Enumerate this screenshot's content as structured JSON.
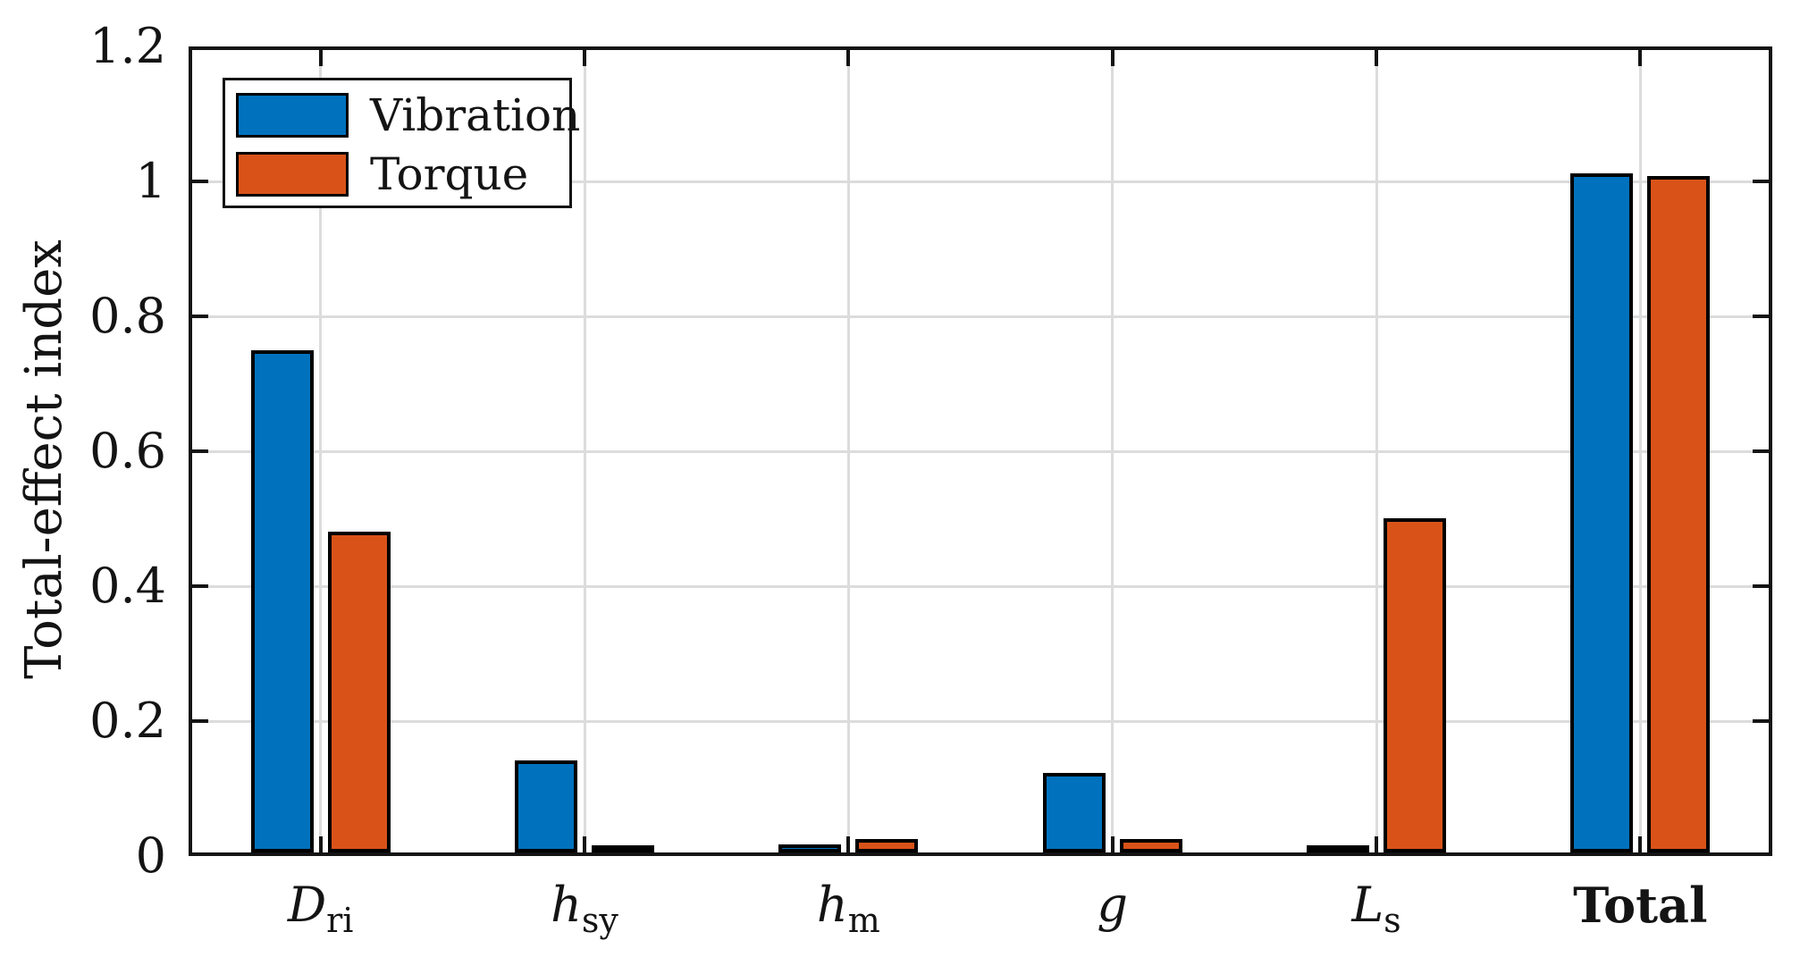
{
  "chart_data": {
    "type": "bar",
    "title": "",
    "xlabel": "",
    "ylabel": "Total-effect index",
    "ylim": [
      0,
      1.2
    ],
    "yticks": [
      0,
      0.2,
      0.4,
      0.6,
      0.8,
      1,
      1.2
    ],
    "ytick_labels": [
      "0",
      "0.2",
      "0.4",
      "0.6",
      "0.8",
      "1",
      "1.2"
    ],
    "grid": true,
    "legend_position": "top-left",
    "categories": [
      "D_ri",
      "h_sy",
      "h_m",
      "g",
      "L_s",
      "Total"
    ],
    "categories_rich": [
      {
        "base": "D",
        "style": "italic",
        "sub": "ri"
      },
      {
        "base": "h",
        "style": "italic",
        "sub": "sy"
      },
      {
        "base": "h",
        "style": "italic",
        "sub": "m"
      },
      {
        "base": "g",
        "style": "italic",
        "sub": ""
      },
      {
        "base": "L",
        "style": "italic",
        "sub": "s"
      },
      {
        "base": "Total",
        "style": "bold",
        "sub": ""
      }
    ],
    "series": [
      {
        "name": "Vibration",
        "color": "#0072BD",
        "values": [
          0.74,
          0.133,
          0.008,
          0.114,
          0.007,
          1.003
        ]
      },
      {
        "name": "Torque",
        "color": "#D95319",
        "values": [
          0.472,
          0.002,
          0.016,
          0.016,
          0.491,
          0.999
        ]
      }
    ],
    "colors": {
      "axis": "#141414",
      "grid": "#dcdcdc",
      "bar_edge": "#000000",
      "background": "#ffffff"
    }
  }
}
